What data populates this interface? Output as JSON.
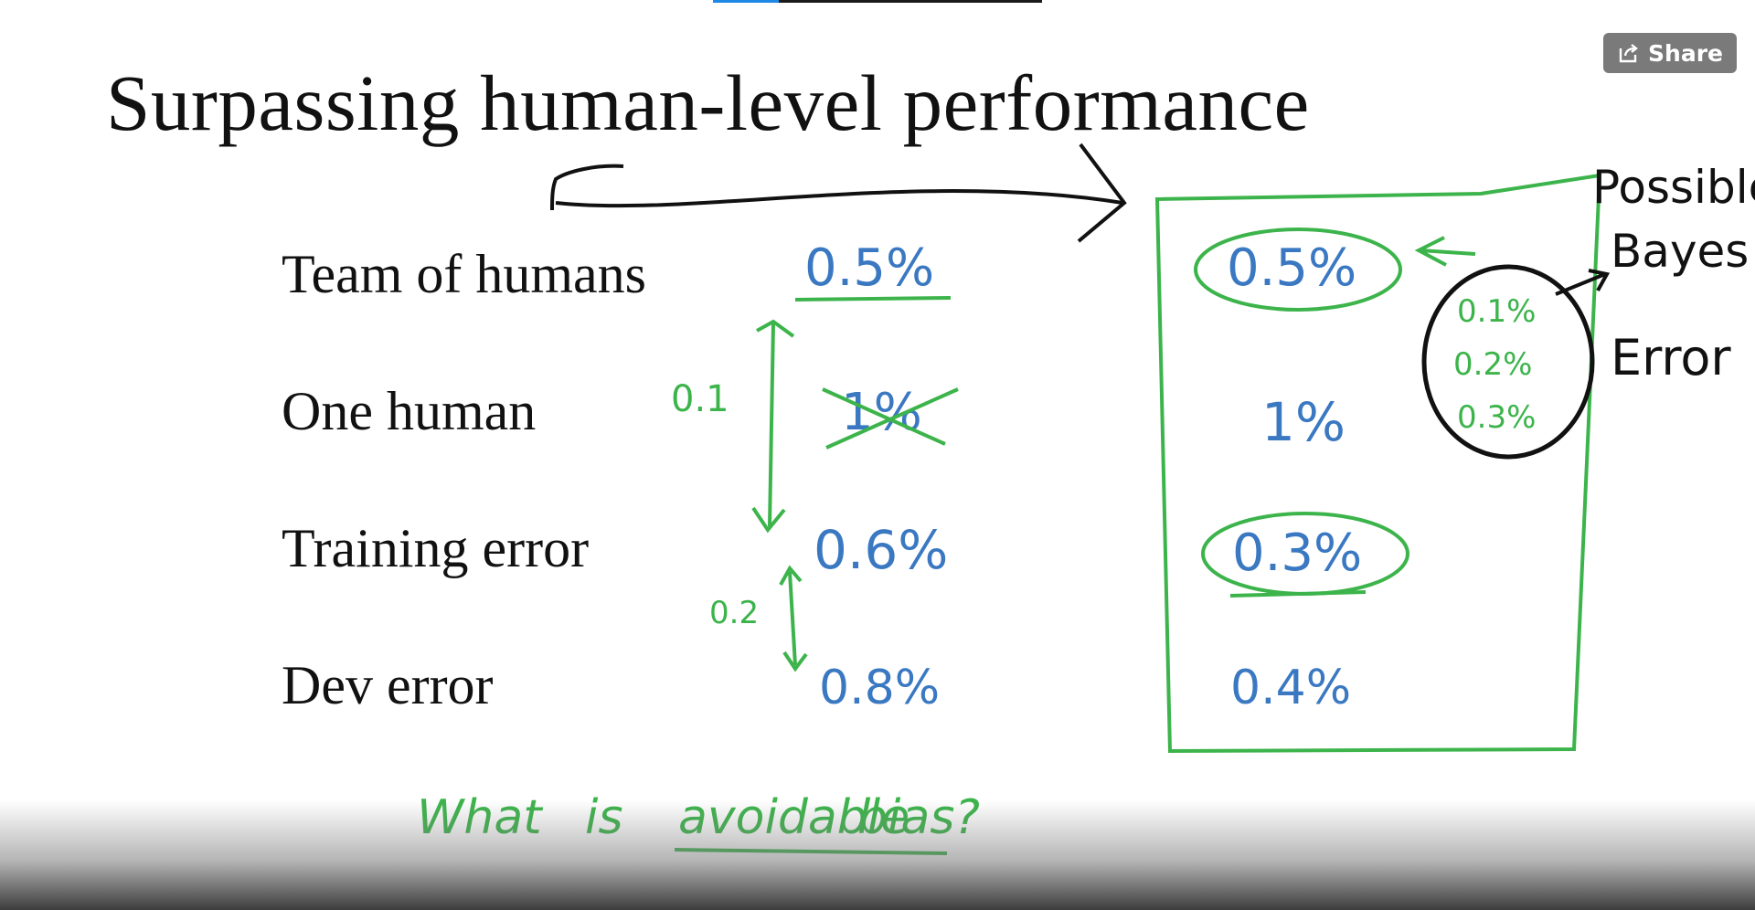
{
  "player": {
    "share_label": "Share",
    "progress_fraction": 0.2
  },
  "slide": {
    "title": "Surpassing human-level performance",
    "rows": [
      {
        "label": "Team of humans",
        "scenario_a": "0.5%",
        "scenario_b": "0.5%"
      },
      {
        "label": "One human",
        "scenario_a": "1%",
        "scenario_b": "1%"
      },
      {
        "label": "Training error",
        "scenario_a": "0.6%",
        "scenario_b": "0.3%"
      },
      {
        "label": "Dev error",
        "scenario_a": "0.8%",
        "scenario_b": "0.4%"
      }
    ]
  },
  "annotations": {
    "gap_top": "0.1",
    "gap_bottom": "0.2",
    "question_word1": "What",
    "question_word2": "is",
    "question_word3": "avoidable",
    "question_word4": "bias?",
    "bayes_line1": "Possible",
    "bayes_line2": "Bayes",
    "bayes_line3": "Error",
    "bayes_options": [
      "0.1%",
      "0.2%",
      "0.3%"
    ]
  },
  "colors": {
    "ink_blue": "#3a78c2",
    "ink_green": "#3cb44b",
    "ink_black": "#111111",
    "share_bg": "#7a7a7a"
  }
}
